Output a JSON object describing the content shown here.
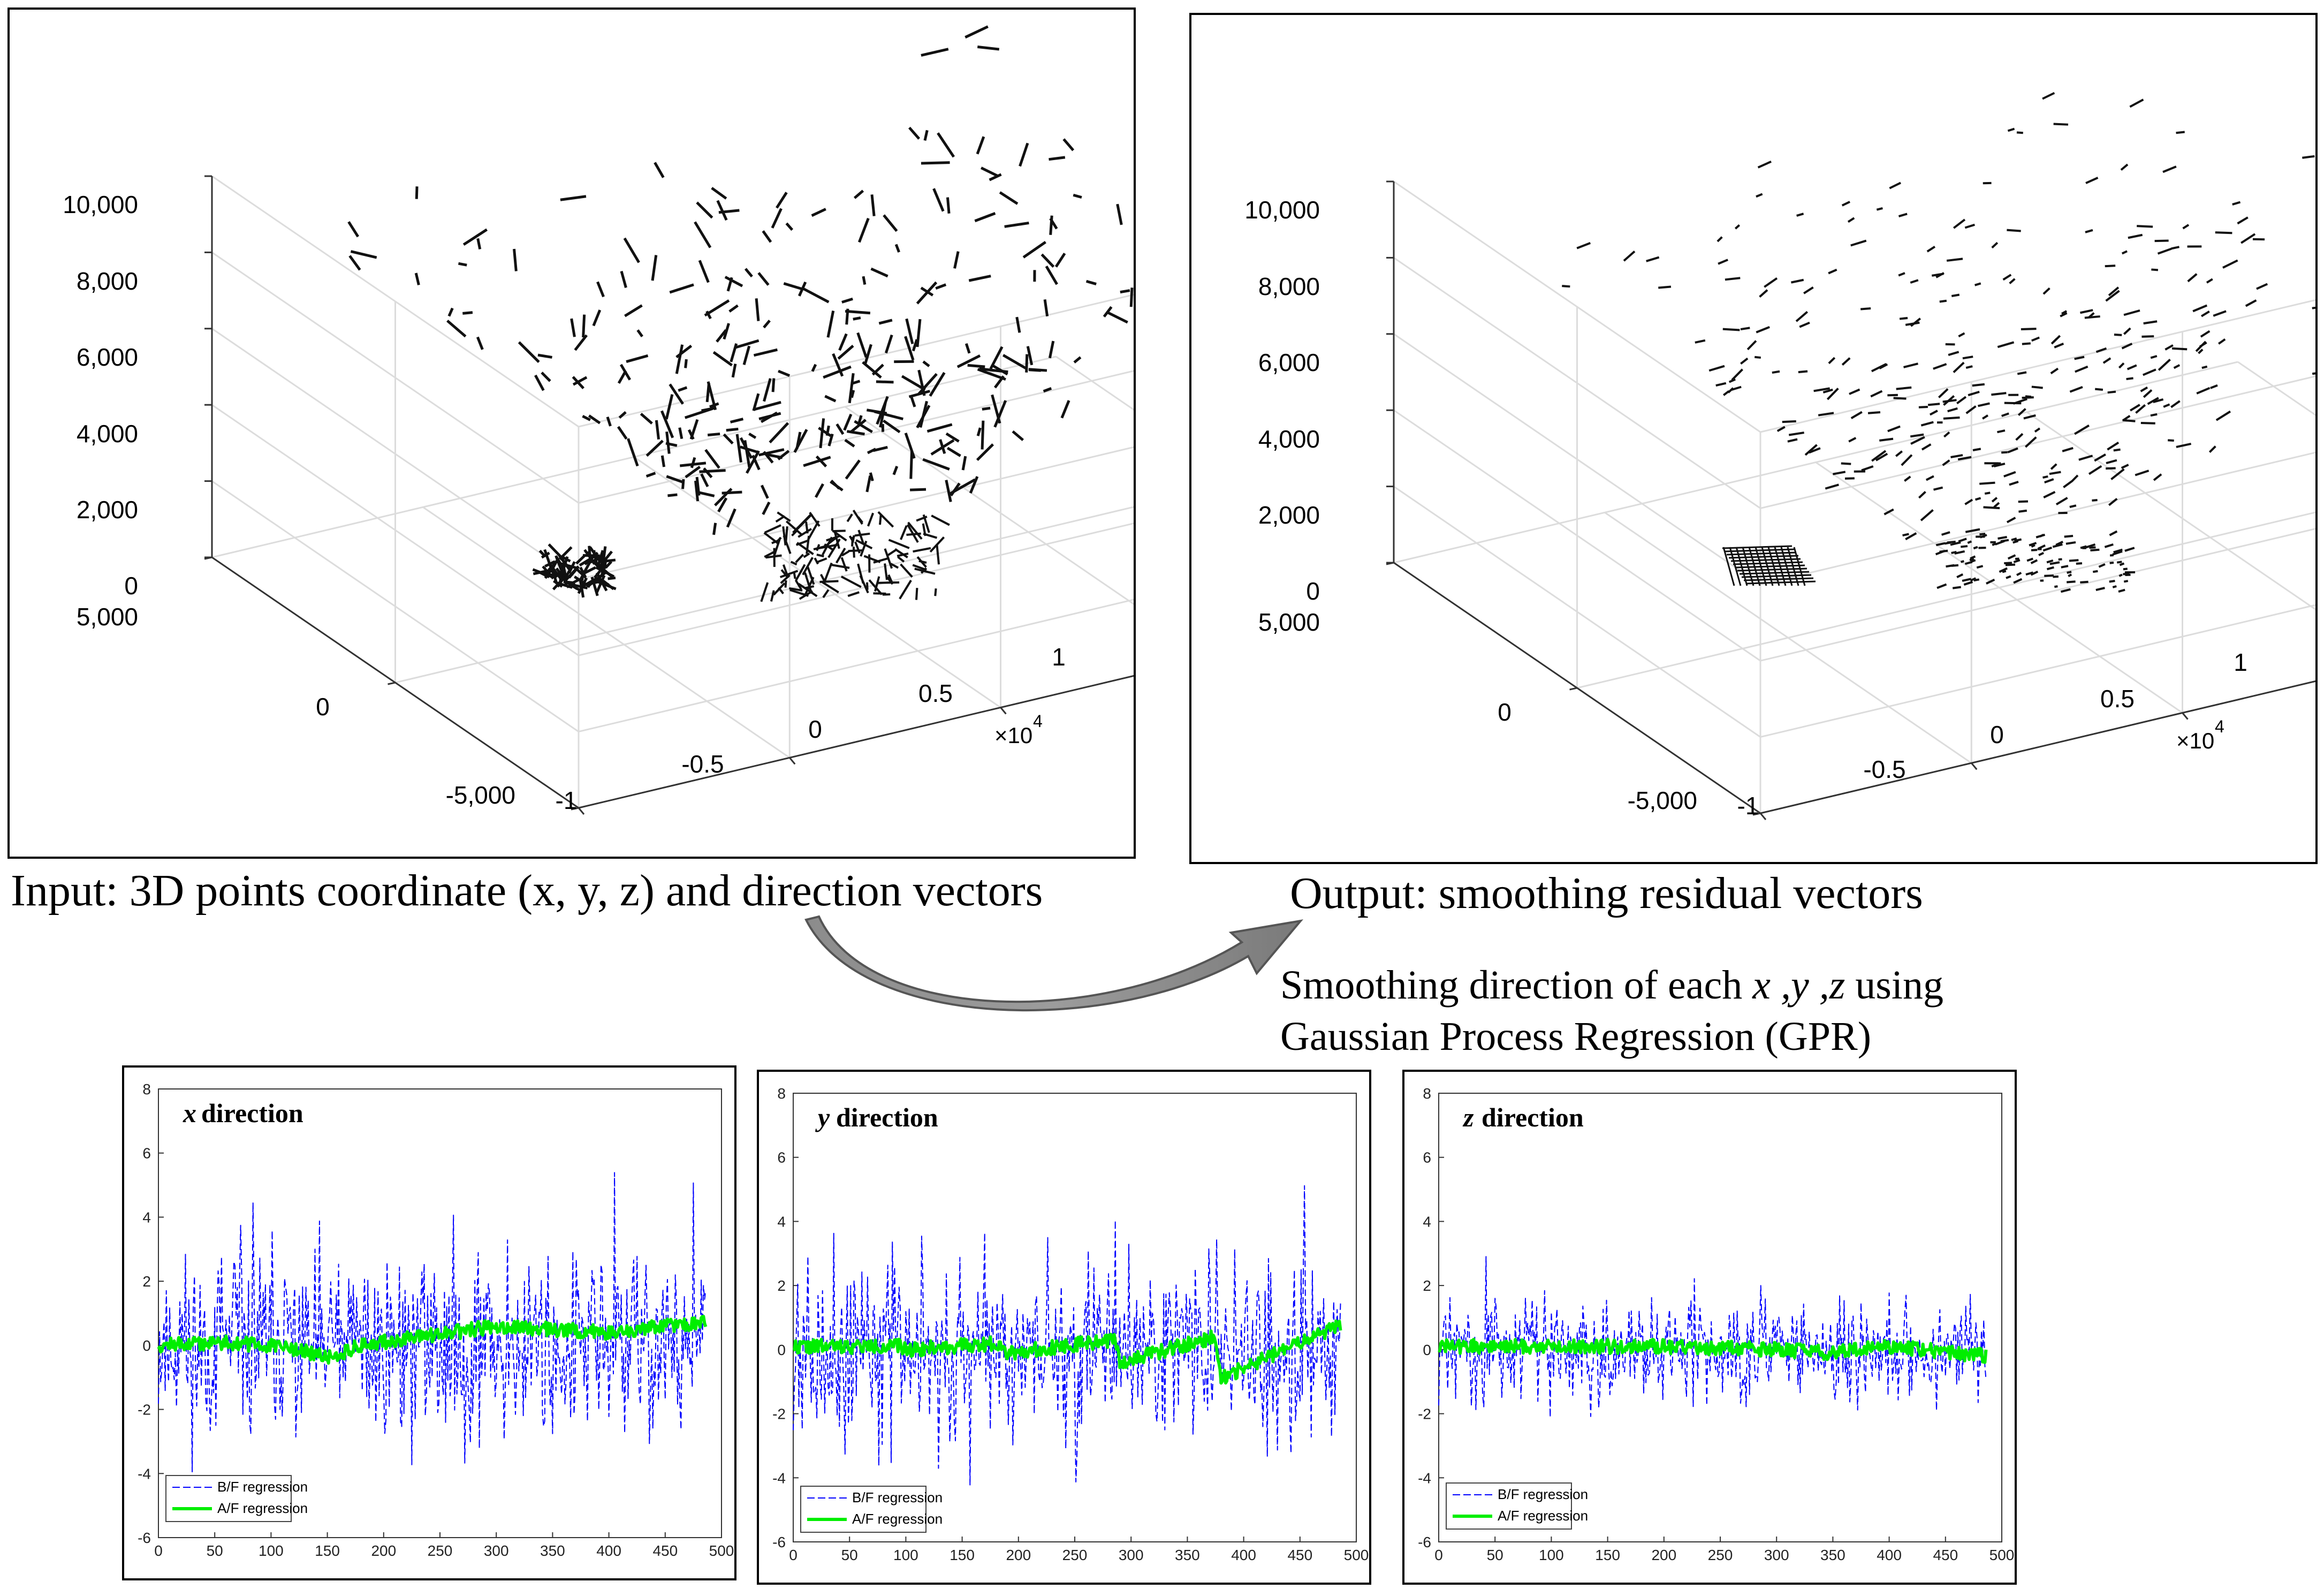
{
  "captions": {
    "input": "Input: 3D points coordinate (x, y, z) and direction vectors",
    "output": "Output: smoothing residual vectors",
    "gpr_line1_prefix": "Smoothing direction of each ",
    "gpr_line1_vars": "x ,y ,z",
    "gpr_line1_suffix": " using",
    "gpr_line2": "Gaussian Process Regression (GPR)"
  },
  "chart_data": [
    {
      "type": "quiver3d",
      "title": "Input",
      "z_ticks": [
        "0",
        "2,000",
        "4,000",
        "6,000",
        "8,000",
        "10,000"
      ],
      "y_ticks": [
        "5,000",
        "0",
        "-5,000"
      ],
      "x_ticks": [
        "-1",
        "-0.5",
        "0",
        "0.5",
        "1"
      ],
      "x_scale_label": "×10",
      "x_scale_exp": "4",
      "zlim": [
        0,
        10000
      ],
      "ylim": [
        -5000,
        5000
      ],
      "xlim": [
        -10000,
        10000
      ],
      "vectors": "noisy"
    },
    {
      "type": "quiver3d",
      "title": "Output",
      "z_ticks": [
        "0",
        "2,000",
        "4,000",
        "6,000",
        "8,000",
        "10,000"
      ],
      "y_ticks": [
        "5,000",
        "0",
        "-5,000"
      ],
      "x_ticks": [
        "-1",
        "-0.5",
        "0",
        "0.5",
        "1"
      ],
      "x_scale_label": "×10",
      "x_scale_exp": "4",
      "zlim": [
        0,
        10000
      ],
      "ylim": [
        -5000,
        5000
      ],
      "xlim": [
        -10000,
        10000
      ],
      "vectors": "smoothed"
    },
    {
      "type": "line",
      "title_var": "x",
      "title_rest": " direction",
      "xlim": [
        0,
        500
      ],
      "ylim": [
        -6,
        8
      ],
      "x_ticks": [
        "0",
        "50",
        "100",
        "150",
        "200",
        "250",
        "300",
        "350",
        "400",
        "450",
        "500"
      ],
      "y_ticks": [
        "-6",
        "-4",
        "-2",
        "0",
        "2",
        "4",
        "6",
        "8"
      ],
      "legend": [
        "B/F regression",
        "A/F regression"
      ],
      "series": [
        {
          "name": "B/F regression",
          "color": "#0000ff",
          "style": "dashed",
          "n": 487,
          "amplitude": 2.4,
          "seed": 11
        },
        {
          "name": "A/F regression",
          "color": "#00ee00",
          "style": "solid",
          "n": 487,
          "knots": [
            [
              0,
              0.0
            ],
            [
              60,
              0.1
            ],
            [
              120,
              -0.1
            ],
            [
              150,
              -0.4
            ],
            [
              180,
              0.0
            ],
            [
              240,
              0.3
            ],
            [
              300,
              0.6
            ],
            [
              350,
              0.5
            ],
            [
              400,
              0.4
            ],
            [
              450,
              0.6
            ],
            [
              487,
              0.7
            ]
          ],
          "seed": 12
        }
      ]
    },
    {
      "type": "line",
      "title_var": "y",
      "title_rest": " direction",
      "xlim": [
        0,
        500
      ],
      "ylim": [
        -6,
        8
      ],
      "x_ticks": [
        "0",
        "50",
        "100",
        "150",
        "200",
        "250",
        "300",
        "350",
        "400",
        "450",
        "500"
      ],
      "y_ticks": [
        "-6",
        "-4",
        "-2",
        "0",
        "2",
        "4",
        "6",
        "8"
      ],
      "legend": [
        "B/F regression",
        "A/F regression"
      ],
      "series": [
        {
          "name": "B/F regression",
          "color": "#0000ff",
          "style": "dashed",
          "n": 487,
          "amplitude": 2.4,
          "seed": 21
        },
        {
          "name": "A/F regression",
          "color": "#00ee00",
          "style": "solid",
          "n": 487,
          "knots": [
            [
              0,
              0.1
            ],
            [
              95,
              0.1
            ],
            [
              100,
              0.0
            ],
            [
              185,
              0.2
            ],
            [
              190,
              -0.1
            ],
            [
              285,
              0.3
            ],
            [
              290,
              -0.4
            ],
            [
              375,
              0.4
            ],
            [
              380,
              -0.9
            ],
            [
              487,
              0.8
            ]
          ],
          "seed": 22
        }
      ]
    },
    {
      "type": "line",
      "title_var": "z",
      "title_rest": " direction",
      "xlim": [
        0,
        500
      ],
      "ylim": [
        -6,
        8
      ],
      "x_ticks": [
        "0",
        "50",
        "100",
        "150",
        "200",
        "250",
        "300",
        "350",
        "400",
        "450",
        "500"
      ],
      "y_ticks": [
        "-6",
        "-4",
        "-2",
        "0",
        "2",
        "4",
        "6",
        "8"
      ],
      "legend": [
        "B/F regression",
        "A/F regression"
      ],
      "series": [
        {
          "name": "B/F regression",
          "color": "#0000ff",
          "style": "dashed",
          "n": 487,
          "amplitude": 1.3,
          "seed": 31
        },
        {
          "name": "A/F regression",
          "color": "#00ee00",
          "style": "solid",
          "n": 487,
          "knots": [
            [
              0,
              0.1
            ],
            [
              200,
              0.1
            ],
            [
              300,
              0.0
            ],
            [
              350,
              -0.1
            ],
            [
              400,
              0.1
            ],
            [
              487,
              -0.2
            ]
          ],
          "seed": 32
        }
      ]
    }
  ]
}
